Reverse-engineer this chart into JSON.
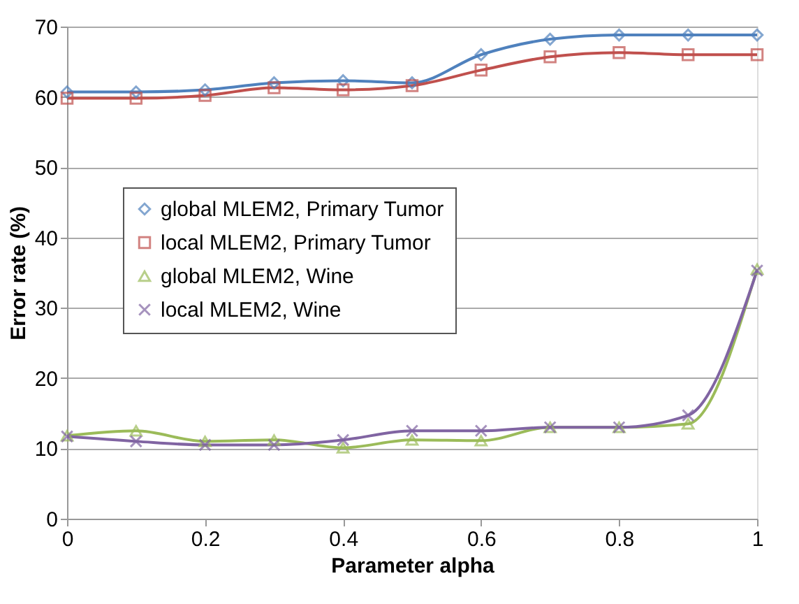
{
  "chart_data": {
    "type": "line",
    "xlabel": "Parameter alpha",
    "ylabel": "Error rate (%)",
    "x": [
      0,
      0.1,
      0.2,
      0.3,
      0.4,
      0.5,
      0.6,
      0.7,
      0.8,
      0.9,
      1
    ],
    "series": [
      {
        "name": "global MLEM2, Primary Tumor",
        "color": "#4f81bd",
        "marker": "diamond",
        "values": [
          60.7,
          60.7,
          61,
          62,
          62.3,
          62,
          66,
          68.2,
          68.8,
          68.8,
          68.8
        ]
      },
      {
        "name": "local MLEM2, Primary Tumor",
        "color": "#c0504d",
        "marker": "square",
        "values": [
          59.8,
          59.8,
          60.2,
          61.3,
          61,
          61.6,
          63.8,
          65.7,
          66.3,
          66,
          66
        ]
      },
      {
        "name": "global MLEM2, Wine",
        "color": "#9bbb59",
        "marker": "triangle",
        "values": [
          11.8,
          12.5,
          11,
          11.2,
          10.1,
          11.2,
          11.1,
          13,
          13,
          13.5,
          35.5
        ]
      },
      {
        "name": "local MLEM2, Wine",
        "color": "#8064a2",
        "marker": "cross",
        "values": [
          11.7,
          11,
          10.5,
          10.5,
          11.2,
          12.5,
          12.5,
          13,
          13,
          14.7,
          35.3
        ]
      }
    ],
    "xlim": [
      0,
      1
    ],
    "xticks": [
      {
        "value": 0,
        "label": "0"
      },
      0.2,
      0.4,
      0.6,
      0.8,
      {
        "value": 1,
        "label": "1"
      }
    ],
    "ylim": [
      0,
      70
    ],
    "yticks": [
      0,
      10,
      20,
      30,
      40,
      50,
      60,
      70
    ],
    "grid": "y",
    "legend": "center left",
    "line_style": "solid"
  }
}
